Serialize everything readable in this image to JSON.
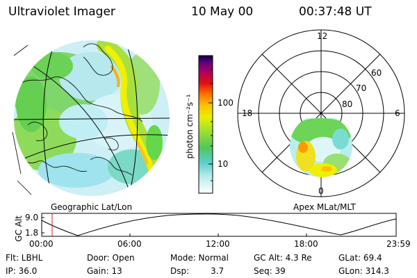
{
  "header": {
    "instrument": "Ultraviolet Imager",
    "date": "10 May 00",
    "time": "00:37:48 UT"
  },
  "left_panel": {
    "label": "Geographic Lat/Lon"
  },
  "right_panel": {
    "label": "Apex MLat/MLT",
    "mlt_labels": [
      "12",
      "18",
      "6",
      "0"
    ],
    "lat_labels": [
      "60",
      "70",
      "80"
    ]
  },
  "colorbar": {
    "unit_label": "photon cm⁻²s⁻¹",
    "tick_labels": [
      "100",
      "10"
    ]
  },
  "altitude_plot": {
    "ylabel": "GC Alt",
    "ytick_top": "9.0",
    "ytick_bottom": "1.8",
    "xtick_labels": [
      "00:00",
      "06:00",
      "12:00",
      "18:00",
      "23:59"
    ]
  },
  "footer": {
    "row1": {
      "flt": "Flt: LBHL",
      "door": "Door: Open",
      "mode": "Mode: Normal",
      "gc_alt": "GC Alt: 4.3 Re",
      "glat": "GLat: 69.4"
    },
    "row2": {
      "ip": "IP: 36.0",
      "gain": "Gain: 13",
      "dsp_label": "Dsp:",
      "dsp_value": "3.7",
      "seq": "Seq: 39",
      "glon": "GLon: 314.3"
    }
  },
  "colors": {
    "aurora_low": "#9fe3ee",
    "aurora_mid": "#66d64a",
    "aurora_high": "#f0f000",
    "aurora_peak": "#ff9000",
    "marker": "#d02020"
  }
}
